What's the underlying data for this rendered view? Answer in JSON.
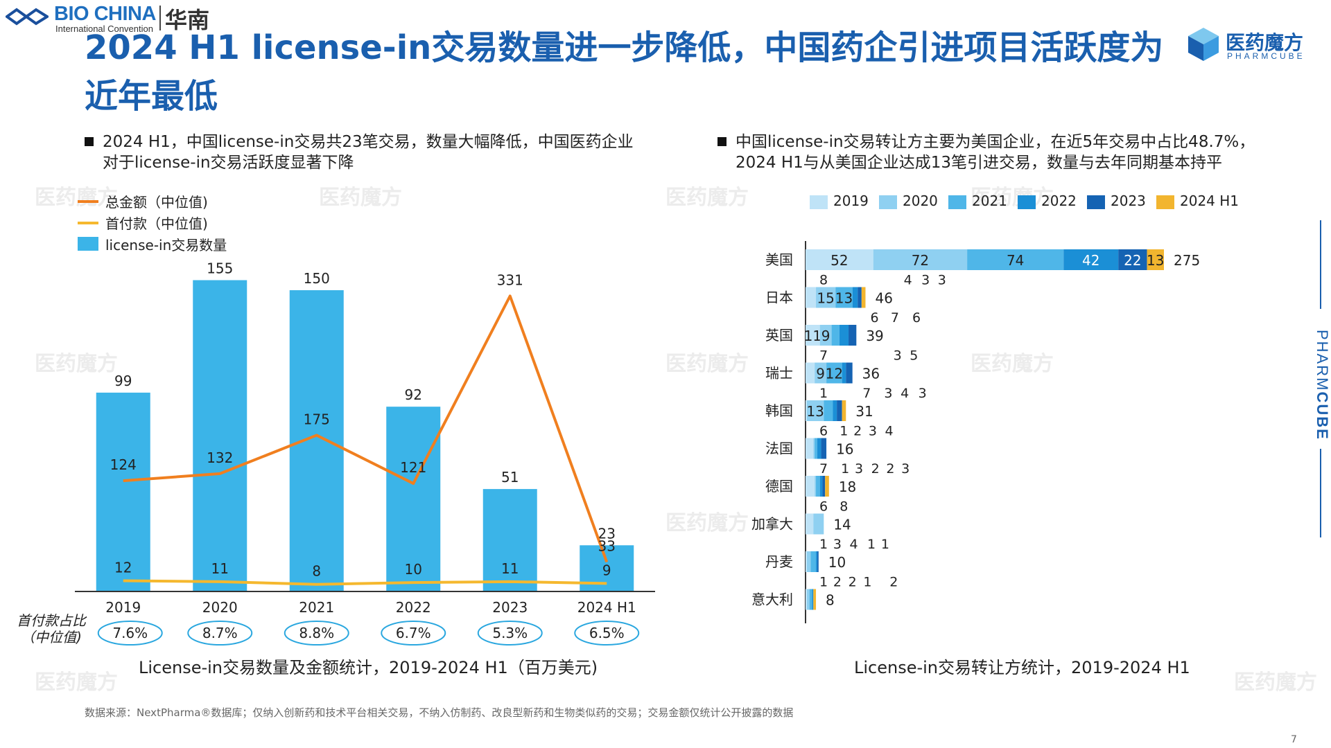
{
  "header": {
    "brand_left": "BIO CHINA",
    "brand_left_sub": "International Convention",
    "brand_left_cn": "华南",
    "title": "2024 H1 license-in交易数量进一步降低，中国药企引进项目活跃度为近年最低",
    "brand_right_cn": "医药魔方",
    "brand_right_en": "PHARMCUBE"
  },
  "left": {
    "bullet": "2024 H1，中国license-in交易共23笔交易，数量大幅降低，中国医药企业对于license-in交易活跃度显著下降",
    "legend": [
      {
        "label": "总金额（中位值)",
        "color": "#f07f1f",
        "kind": "line"
      },
      {
        "label": "首付款（中位值)",
        "color": "#f5b82e",
        "kind": "line"
      },
      {
        "label": "license-in交易数量",
        "color": "#3bb4e8",
        "kind": "bar"
      }
    ],
    "ratio_title": "首付款占比（中位值)",
    "caption": "License-in交易数量及金额统计，2019-2024 H1（百万美元)"
  },
  "right": {
    "bullet": "中国license-in交易转让方主要为美国企业，在近5年交易中占比48.7%，2024 H1与从美国企业达成13笔引进交易，数量与去年同期基本持平",
    "legend": [
      {
        "label": "2019",
        "color": "#bfe3f7"
      },
      {
        "label": "2020",
        "color": "#8fd0f1"
      },
      {
        "label": "2021",
        "color": "#4fb6e8"
      },
      {
        "label": "2022",
        "color": "#1b8fd6"
      },
      {
        "label": "2023",
        "color": "#1563b3"
      },
      {
        "label": "2024 H1",
        "color": "#f2b52f"
      }
    ],
    "caption": "License-in交易转让方统计，2019-2024 H1"
  },
  "footer": {
    "source": "数据来源：NextPharma®数据库；仅纳入创新药和技术平台相关交易，不纳入仿制药、改良型新药和生物类似药的交易；交易金额仅统计公开披露的数据",
    "page": "7"
  },
  "side": {
    "word_light": "PHARM",
    "word_bold": "CUBE"
  },
  "chart_data": [
    {
      "type": "bar",
      "title": "License-in交易数量及金额统计，2019-2024 H1（百万美元)",
      "categories": [
        "2019",
        "2020",
        "2021",
        "2022",
        "2023",
        "2024 H1"
      ],
      "series": [
        {
          "name": "license-in交易数量",
          "kind": "bar",
          "values": [
            99,
            155,
            150,
            92,
            51,
            23
          ]
        },
        {
          "name": "总金额（中位值)",
          "kind": "line",
          "values": [
            124,
            132,
            175,
            121,
            331,
            33
          ]
        },
        {
          "name": "首付款（中位值)",
          "kind": "line",
          "values": [
            12,
            11,
            8,
            10,
            11,
            9
          ]
        }
      ],
      "ratio": [
        "7.6%",
        "8.7%",
        "8.8%",
        "6.7%",
        "5.3%",
        "6.5%"
      ],
      "bar_ylim": [
        0,
        160
      ],
      "line_ylim": [
        0,
        360
      ]
    },
    {
      "type": "bar",
      "orientation": "horizontal",
      "stacked": true,
      "title": "License-in交易转让方统计，2019-2024 H1",
      "categories": [
        "美国",
        "日本",
        "英国",
        "瑞士",
        "韩国",
        "法国",
        "德国",
        "加拿大",
        "丹麦",
        "意大利"
      ],
      "series": [
        {
          "name": "2019",
          "values": [
            52,
            8,
            11,
            7,
            1,
            6,
            7,
            6,
            1,
            1
          ]
        },
        {
          "name": "2020",
          "values": [
            72,
            15,
            9,
            9,
            13,
            1,
            1,
            8,
            3,
            2
          ]
        },
        {
          "name": "2021",
          "values": [
            74,
            13,
            6,
            12,
            7,
            2,
            3,
            0,
            4,
            2
          ]
        },
        {
          "name": "2022",
          "values": [
            42,
            4,
            7,
            3,
            3,
            3,
            2,
            0,
            1,
            1
          ]
        },
        {
          "name": "2023",
          "values": [
            22,
            3,
            6,
            5,
            4,
            4,
            2,
            0,
            1,
            0
          ]
        },
        {
          "name": "2024 H1",
          "values": [
            13,
            3,
            0,
            0,
            3,
            0,
            3,
            0,
            0,
            2
          ]
        }
      ],
      "totals": [
        275,
        46,
        39,
        36,
        31,
        16,
        18,
        14,
        10,
        8
      ],
      "xlim": [
        0,
        290
      ]
    }
  ]
}
